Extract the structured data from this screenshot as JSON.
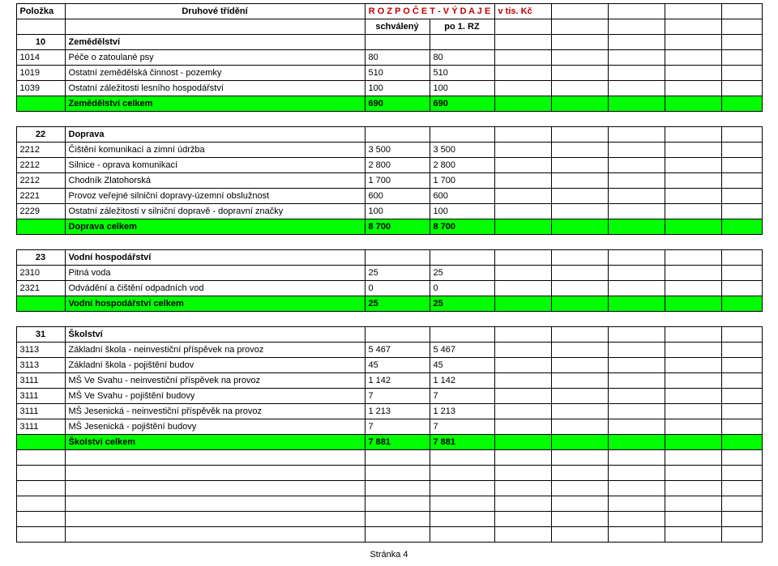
{
  "header": {
    "col_a": "Položka",
    "col_b": "Druhové třídění",
    "col_cd": "R O Z P O Č E T - V Ý D A J E",
    "col_e": "v tis. Kč",
    "sub_c": "schválený",
    "sub_d": "po 1. RZ"
  },
  "sections": [
    {
      "code": "10",
      "name": "Zemědělství",
      "rows": [
        {
          "code": "1014",
          "name": "Péče o zatoulané psy",
          "c": "80",
          "d": "80"
        },
        {
          "code": "1019",
          "name": "Ostatní zemědělská činnost - pozemky",
          "c": "510",
          "d": "510"
        },
        {
          "code": "1039",
          "name": "Ostatní záležitosti lesního hospodářství",
          "c": "100",
          "d": "100"
        }
      ],
      "total": {
        "name": "Zemědělství celkem",
        "c": "690",
        "d": "690"
      }
    },
    {
      "code": "22",
      "name": "Doprava",
      "rows": [
        {
          "code": "2212",
          "name": "Čištění komunikací a zimní údržba",
          "c": "3 500",
          "d": "3 500"
        },
        {
          "code": "2212",
          "name": "Silnice - oprava komunikací",
          "c": "2 800",
          "d": "2 800"
        },
        {
          "code": "2212",
          "name": "Chodník Zlatohorská",
          "c": "1 700",
          "d": "1 700"
        },
        {
          "code": "2221",
          "name": "Provoz veřejné silniční dopravy-územní obslužnost",
          "c": "600",
          "d": "600"
        },
        {
          "code": "2229",
          "name": "Ostatní záležitosti v silniční dopravě - dopravní značky",
          "c": "100",
          "d": "100"
        }
      ],
      "total": {
        "name": "Doprava celkem",
        "c": "8 700",
        "d": "8 700"
      }
    },
    {
      "code": "23",
      "name": "Vodní hospodářství",
      "rows": [
        {
          "code": "2310",
          "name": "Pitná voda",
          "c": "25",
          "d": "25"
        },
        {
          "code": "2321",
          "name": "Odvádění a čištění odpadních vod",
          "c": "0",
          "d": "0"
        }
      ],
      "total": {
        "name": "Vodní hospodářství celkem",
        "c": "25",
        "d": "25"
      }
    },
    {
      "code": "31",
      "name": "Školství",
      "rows": [
        {
          "code": "3113",
          "name": "Základní škola - neinvestiční příspěvek na provoz",
          "c": "5 467",
          "d": "5 467"
        },
        {
          "code": "3113",
          "name": "Základní škola - pojištění budov",
          "c": "45",
          "d": "45"
        },
        {
          "code": "3111",
          "name": "MŠ Ve Svahu - neinvestiční příspěvek na provoz",
          "c": "1 142",
          "d": "1 142"
        },
        {
          "code": "3111",
          "name": "MŠ Ve Svahu - pojištění budovy",
          "c": "7",
          "d": "7"
        },
        {
          "code": "3111",
          "name": "MŠ Jesenická - neinvestiční příspěvěk na provoz",
          "c": "1 213",
          "d": "1 213"
        },
        {
          "code": "3111",
          "name": "MŠ Jesenická - pojištění budovy",
          "c": "7",
          "d": "7"
        }
      ],
      "total": {
        "name": "Školství celkem",
        "c": "7 881",
        "d": "7 881"
      }
    }
  ],
  "footer": "Stránka 4",
  "colors": {
    "green": "#00ff00",
    "red": "#c00000",
    "border": "#000000",
    "bg": "#ffffff"
  }
}
